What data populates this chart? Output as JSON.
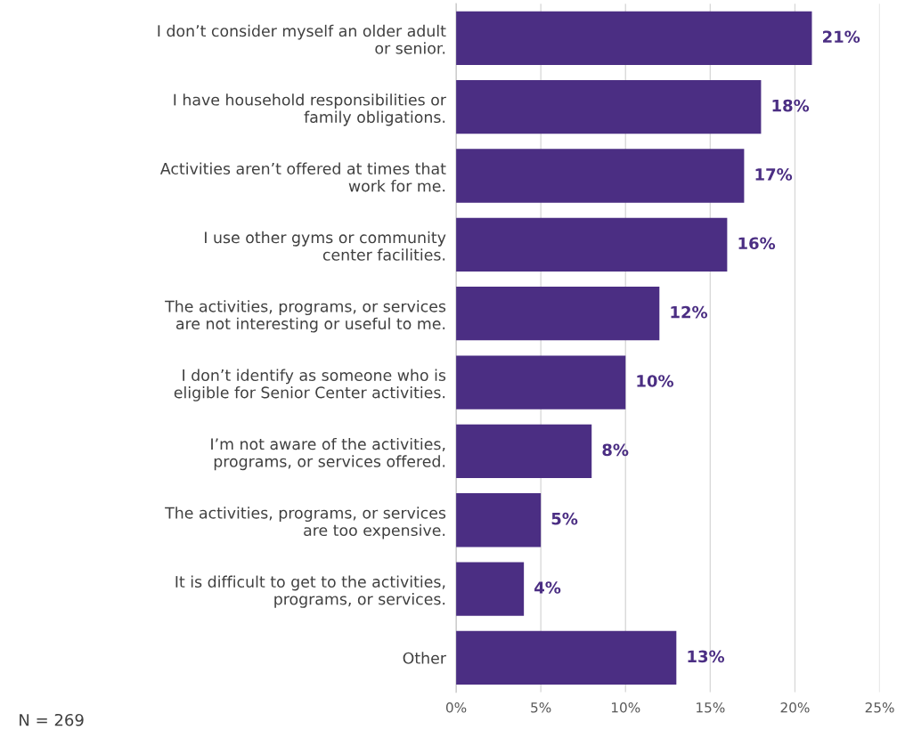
{
  "chart_data": {
    "type": "bar",
    "orientation": "horizontal",
    "categories": [
      "I don’t consider myself an older adult\nor senior.",
      "I have household responsibilities or\nfamily obligations.",
      "Activities aren’t offered at times that\nwork for me.",
      "I use other gyms or community\ncenter facilities.",
      "The activities, programs, or services\nare not interesting or useful to me.",
      "I don’t identify as someone who is\neligible for Senior Center activities.",
      "I’m not aware of the activities,\nprograms, or services offered.",
      "The activities, programs, or services\nare too expensive.",
      "It is difficult to get to the activities,\nprograms, or services.",
      "Other"
    ],
    "values": [
      21,
      18,
      17,
      16,
      12,
      10,
      8,
      5,
      4,
      13
    ],
    "value_labels": [
      "21%",
      "18%",
      "17%",
      "16%",
      "12%",
      "10%",
      "8%",
      "5%",
      "4%",
      "13%"
    ],
    "color": "#4b2e83",
    "xlim": [
      0,
      25
    ],
    "xticks": [
      {
        "value": 0,
        "label": "0%"
      },
      {
        "value": 5,
        "label": "5%"
      },
      {
        "value": 10,
        "label": "10%"
      },
      {
        "value": 15,
        "label": "15%"
      },
      {
        "value": 20,
        "label": "20%"
      },
      {
        "value": 25,
        "label": "25%"
      }
    ],
    "grid": "x",
    "annotations": [
      "N = 269"
    ]
  }
}
